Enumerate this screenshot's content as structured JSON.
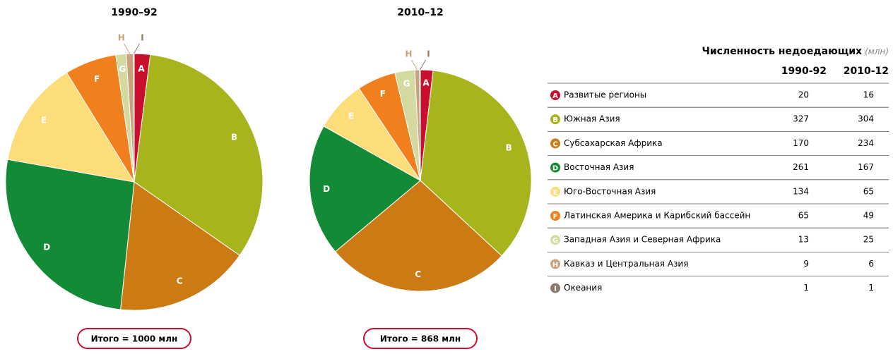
{
  "chart_data": [
    {
      "type": "pie",
      "title": "1990–92",
      "categories": [
        "A",
        "B",
        "C",
        "D",
        "E",
        "F",
        "G",
        "H",
        "I"
      ],
      "values": [
        20,
        327,
        170,
        261,
        134,
        65,
        13,
        9,
        1
      ],
      "colors": [
        "#c8102e",
        "#a8b41c",
        "#cc7a14",
        "#138a36",
        "#fddc7a",
        "#f0801e",
        "#d4d9a0",
        "#c9a27c",
        "#8c7b6b"
      ],
      "total": "Итого = 1000 млн"
    },
    {
      "type": "pie",
      "title": "2010–12",
      "categories": [
        "A",
        "B",
        "C",
        "D",
        "E",
        "F",
        "G",
        "H",
        "I"
      ],
      "values": [
        16,
        304,
        234,
        167,
        65,
        49,
        25,
        6,
        1
      ],
      "colors": [
        "#c8102e",
        "#a8b41c",
        "#cc7a14",
        "#138a36",
        "#fddc7a",
        "#f0801e",
        "#d4d9a0",
        "#c9a27c",
        "#8c7b6b"
      ],
      "total": "Итого = 868 млн"
    }
  ],
  "table": {
    "title": "Численность недоедающих",
    "unit": "(млн)",
    "columns": [
      "1990-92",
      "2010-12"
    ],
    "rows": [
      "Развитые регионы",
      "Южная Азия",
      "Субсахарская Африка",
      "Восточная Азия",
      "Юго-Восточная Азия",
      "Латинская Америка и Карибский бассейн",
      "Западная Азия и Северная Африка",
      "Кавказ и Центральная Азия",
      "Океания"
    ]
  }
}
